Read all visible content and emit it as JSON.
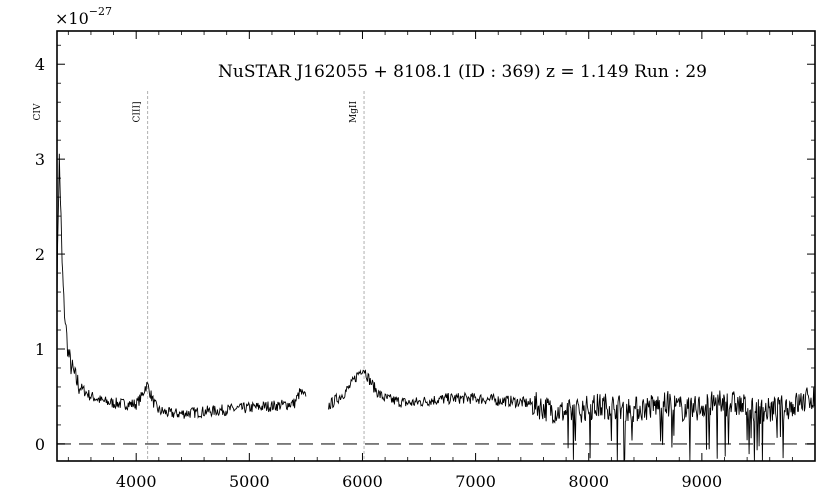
{
  "chart_data": {
    "type": "line",
    "title": "NuSTAR J162055 + 8108.1 (ID : 369)   z = 1.149   Run : 29",
    "scale_label": "×10",
    "scale_exponent": "−27",
    "xlabel": "",
    "ylabel": "",
    "xlim": [
      3300,
      10000
    ],
    "ylim": [
      -0.18,
      4.35
    ],
    "x_ticks": [
      4000,
      5000,
      6000,
      7000,
      8000,
      9000
    ],
    "x_tick_labels": [
      "4000",
      "5000",
      "6000",
      "7000",
      "8000",
      "9000"
    ],
    "y_ticks": [
      0,
      1,
      2,
      3,
      4
    ],
    "y_tick_labels": [
      "0",
      "1",
      "2",
      "3",
      "4"
    ],
    "grid": false,
    "zero_line": {
      "y": 0,
      "style": "dashed",
      "color": "#666666"
    },
    "emission_lines": [
      {
        "label": "CIV",
        "x": 3328
      },
      {
        "label": "CIII]",
        "x": 4101
      },
      {
        "label": "MgII",
        "x": 6014
      }
    ],
    "series": [
      {
        "color": "#000000",
        "segments": [
          {
            "x": [
              3300,
              3310,
              3320,
              3330,
              3345,
              3360,
              3380,
              3400,
              3430,
              3460,
              3500,
              3550,
              3600,
              3650,
              3700,
              3800,
              3900,
              4000,
              4050,
              4080,
              4100,
              4120,
              4160,
              4200,
              4300,
              4400,
              4500,
              4600,
              4700,
              4800,
              4900,
              5000,
              5100,
              5200,
              5300,
              5400,
              5450,
              5480,
              5500
            ],
            "y": [
              1.6,
              2.4,
              3.0,
              2.6,
              1.9,
              1.5,
              1.2,
              0.95,
              0.8,
              0.7,
              0.6,
              0.55,
              0.5,
              0.48,
              0.45,
              0.43,
              0.42,
              0.42,
              0.5,
              0.6,
              0.62,
              0.55,
              0.42,
              0.35,
              0.32,
              0.32,
              0.33,
              0.34,
              0.35,
              0.36,
              0.37,
              0.38,
              0.39,
              0.4,
              0.41,
              0.43,
              0.55,
              0.5,
              0.5
            ]
          },
          {
            "x": [
              5700,
              5750,
              5800,
              5850,
              5900,
              5950,
              6000,
              6020,
              6050,
              6100,
              6150,
              6200,
              6300,
              6400,
              6500,
              6600,
              6700,
              6800,
              6900,
              7000,
              7100,
              7200,
              7300,
              7400,
              7500,
              7600,
              7700,
              7800,
              7900,
              8000,
              8100,
              8200,
              8300,
              8400,
              8500,
              8600,
              8700,
              8800,
              8900,
              9000,
              9100,
              9200,
              9300,
              9400,
              9500,
              9600,
              9700,
              9800,
              9900,
              10000
            ],
            "y": [
              0.4,
              0.45,
              0.5,
              0.55,
              0.62,
              0.72,
              0.8,
              0.78,
              0.7,
              0.6,
              0.52,
              0.48,
              0.45,
              0.43,
              0.44,
              0.46,
              0.47,
              0.48,
              0.48,
              0.48,
              0.47,
              0.46,
              0.45,
              0.44,
              0.42,
              0.38,
              0.35,
              0.33,
              0.35,
              0.38,
              0.4,
              0.4,
              0.38,
              0.36,
              0.38,
              0.4,
              0.42,
              0.38,
              0.35,
              0.4,
              0.42,
              0.43,
              0.42,
              0.38,
              0.35,
              0.35,
              0.38,
              0.4,
              0.45,
              0.5
            ]
          }
        ]
      }
    ]
  }
}
